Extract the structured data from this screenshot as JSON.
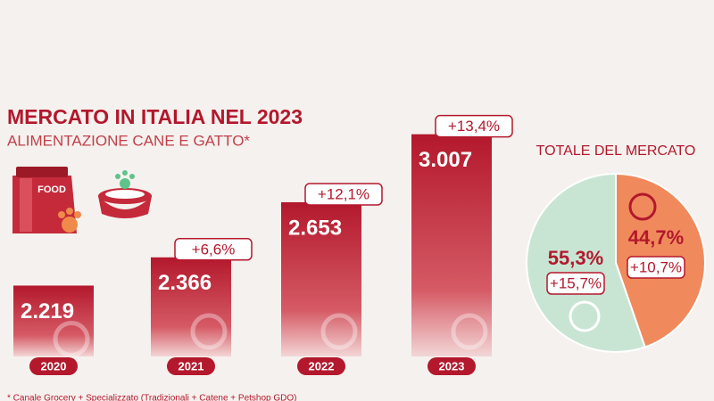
{
  "title": "MERCATO IN ITALIA NEL 2023",
  "subtitle": "ALIMENTAZIONE CANE E GATTO*",
  "food_label": "FOOD",
  "footnote": "* Canale Grocery + Specializzato (Tradizionali + Catene + Petshop GDO)",
  "chart_data": [
    {
      "type": "bar",
      "categories": [
        "2020",
        "2021",
        "2022",
        "2023"
      ],
      "values": [
        2219,
        2366,
        2653,
        3007
      ],
      "value_labels": [
        "2.219",
        "2.366",
        "2.653",
        "3.007"
      ],
      "annotations": [
        null,
        "+6,6%",
        "+12,1%",
        "+13,4%"
      ],
      "ylim": [
        1850,
        3010
      ],
      "color": "#b3182c"
    },
    {
      "type": "pie",
      "title": "TOTALE DEL MERCATO",
      "values": [
        44.7,
        55.3
      ],
      "value_labels": [
        "44,7%",
        "55,3%"
      ],
      "annotations": [
        "+10,7%",
        "+15,7%"
      ],
      "colors": [
        "#f08a5d",
        "#c8e5d3"
      ]
    }
  ]
}
